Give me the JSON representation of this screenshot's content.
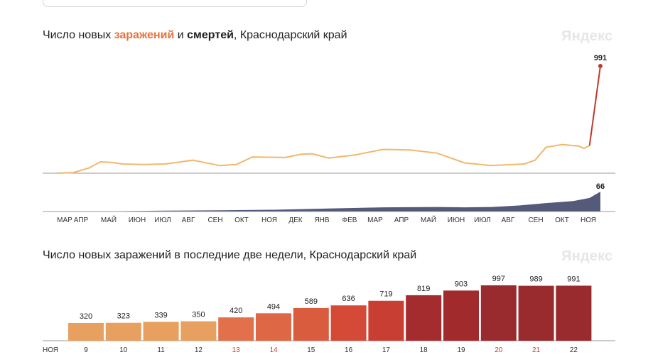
{
  "chart_data": [
    {
      "type": "line",
      "title_parts": [
        "Число новых ",
        "заражений",
        " и ",
        "смертей",
        ", Краснодарский край"
      ],
      "watermark": "Яндекс",
      "series": [
        {
          "name": "заражений",
          "color": "#f0b86c",
          "highlight_color": "#c0392b",
          "x": [
            0,
            0.03,
            0.06,
            0.08,
            0.1,
            0.12,
            0.16,
            0.2,
            0.25,
            0.3,
            0.33,
            0.36,
            0.42,
            0.45,
            0.47,
            0.5,
            0.55,
            0.6,
            0.65,
            0.7,
            0.75,
            0.8,
            0.83,
            0.86,
            0.88,
            0.9,
            0.93,
            0.96,
            0.97,
            0.98,
            1.0
          ],
          "values": [
            0,
            5,
            50,
            105,
            100,
            85,
            80,
            85,
            120,
            70,
            80,
            150,
            145,
            175,
            180,
            140,
            170,
            220,
            215,
            185,
            95,
            70,
            78,
            85,
            120,
            240,
            265,
            250,
            230,
            255,
            991
          ],
          "last_label": "991"
        },
        {
          "name": "смертей",
          "color": "#55597a",
          "x": [
            0,
            0.1,
            0.2,
            0.3,
            0.4,
            0.5,
            0.6,
            0.7,
            0.75,
            0.8,
            0.85,
            0.9,
            0.95,
            0.98,
            1.0
          ],
          "values": [
            0,
            1,
            3,
            4,
            6,
            10,
            14,
            15,
            14,
            15,
            20,
            28,
            35,
            45,
            66
          ],
          "last_label": "66"
        }
      ],
      "x_ticks": [
        "МАР",
        "АПР",
        "МАЙ",
        "ИЮН",
        "ИЮЛ",
        "АВГ",
        "СЕН",
        "ОКТ",
        "НОЯ",
        "ДЕК",
        "ЯНВ",
        "ФЕВ",
        "МАР",
        "АПР",
        "МАЙ",
        "ИЮН",
        "ИЮЛ",
        "АВГ",
        "СЕН",
        "ОКТ",
        "НОЯ"
      ]
    },
    {
      "type": "bar",
      "title": "Число новых заражений в последние две недели, Краснодарский край",
      "watermark": "Яндекс",
      "month_label": "НОЯ",
      "categories": [
        "9",
        "10",
        "11",
        "12",
        "13",
        "14",
        "15",
        "16",
        "17",
        "18",
        "19",
        "20",
        "21",
        "22"
      ],
      "weekend": [
        false,
        false,
        false,
        false,
        true,
        true,
        false,
        false,
        false,
        false,
        false,
        true,
        true,
        false
      ],
      "values": [
        320,
        323,
        339,
        350,
        420,
        494,
        589,
        636,
        719,
        819,
        903,
        997,
        989,
        991
      ],
      "colors": [
        "#e8a060",
        "#e8a060",
        "#e8a060",
        "#e8a060",
        "#e2704a",
        "#de6845",
        "#da5c3e",
        "#d44a36",
        "#c93e32",
        "#a52c2e",
        "#a12a2d",
        "#992a2e",
        "#992a2e",
        "#992a2e"
      ]
    }
  ]
}
